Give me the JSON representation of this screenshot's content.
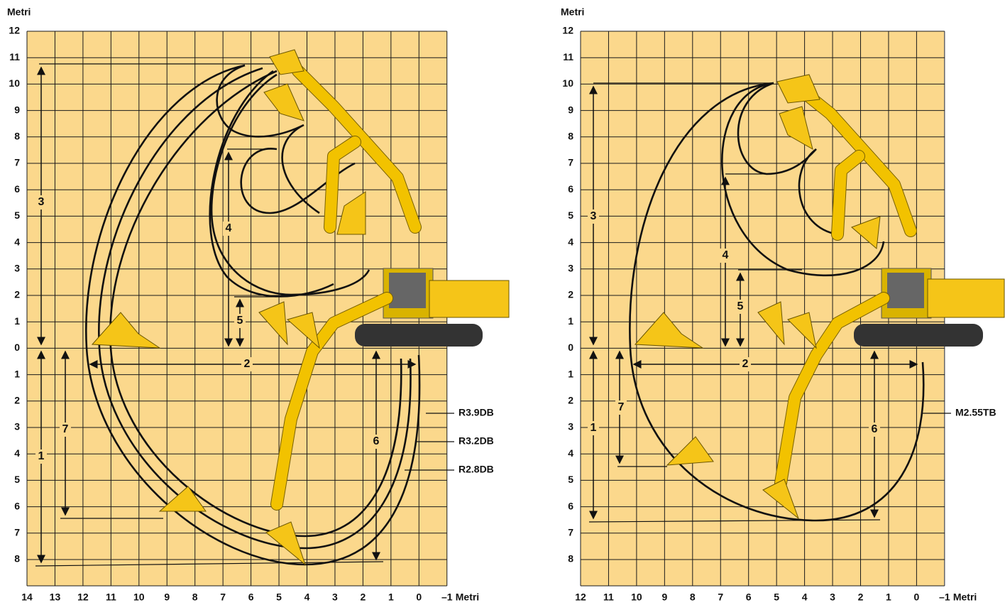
{
  "panels": [
    {
      "y_axis_title": "Metri",
      "y_labels": [
        "12",
        "11",
        "10",
        "9",
        "8",
        "7",
        "6",
        "5",
        "4",
        "3",
        "2",
        "1",
        "0",
        "1",
        "2",
        "3",
        "4",
        "5",
        "6",
        "7",
        "8"
      ],
      "x_labels": [
        "14",
        "13",
        "12",
        "11",
        "10",
        "9",
        "8",
        "7",
        "6",
        "5",
        "4",
        "3",
        "2",
        "1",
        "0",
        "–1"
      ],
      "x_axis_unit": "Metri",
      "callouts": [
        "1",
        "2",
        "3",
        "4",
        "5",
        "6",
        "7"
      ],
      "curve_labels": [
        "R3.9DB",
        "R3.2DB",
        "R2.8DB"
      ]
    },
    {
      "y_axis_title": "Metri",
      "y_labels": [
        "12",
        "11",
        "10",
        "9",
        "8",
        "7",
        "6",
        "5",
        "4",
        "3",
        "2",
        "1",
        "0",
        "1",
        "2",
        "3",
        "4",
        "5",
        "6",
        "7",
        "8"
      ],
      "x_labels": [
        "12",
        "11",
        "10",
        "9",
        "8",
        "7",
        "6",
        "5",
        "4",
        "3",
        "2",
        "1",
        "0",
        "–1"
      ],
      "x_axis_unit": "Metri",
      "callouts": [
        "1",
        "2",
        "3",
        "4",
        "5",
        "6",
        "7"
      ],
      "curve_labels": [
        "M2.55TB"
      ]
    }
  ]
}
